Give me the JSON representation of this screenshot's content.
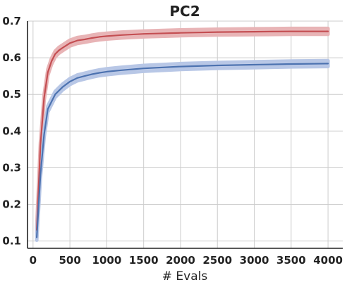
{
  "chart_data": {
    "type": "line",
    "title": "PC2",
    "xlabel": "# Evals",
    "ylabel": "",
    "xlim": [
      -75,
      4200
    ],
    "ylim": [
      0.08,
      0.7
    ],
    "xticks": [
      0,
      500,
      1000,
      1500,
      2000,
      2500,
      3000,
      3500,
      4000
    ],
    "yticks": [
      0.1,
      0.2,
      0.3,
      0.4,
      0.5,
      0.6,
      0.7
    ],
    "xtick_labels": [
      "0",
      "500",
      "1000",
      "1500",
      "2000",
      "2500",
      "3000",
      "3500",
      "4000"
    ],
    "ytick_labels": [
      "0.1",
      "0.2",
      "0.3",
      "0.4",
      "0.5",
      "0.6",
      "0.7"
    ],
    "grid": true,
    "legend": "none",
    "band_halfwidth": 0.008,
    "series": [
      {
        "color": "#c44e52",
        "band_color": "#e8b4b6",
        "x": [
          50,
          100,
          150,
          200,
          250,
          300,
          350,
          400,
          500,
          600,
          700,
          800,
          900,
          1000,
          1200,
          1500,
          2000,
          2500,
          3000,
          3500,
          4000
        ],
        "y": [
          0.13,
          0.36,
          0.49,
          0.56,
          0.59,
          0.61,
          0.62,
          0.627,
          0.64,
          0.647,
          0.65,
          0.654,
          0.657,
          0.659,
          0.662,
          0.665,
          0.668,
          0.67,
          0.671,
          0.672,
          0.672
        ]
      },
      {
        "color": "#4c72b0",
        "band_color": "#b8c7e6",
        "x": [
          50,
          100,
          150,
          200,
          250,
          300,
          350,
          400,
          500,
          600,
          700,
          800,
          900,
          1000,
          1200,
          1500,
          2000,
          2500,
          3000,
          3500,
          4000
        ],
        "y": [
          0.11,
          0.28,
          0.39,
          0.46,
          0.48,
          0.5,
          0.51,
          0.52,
          0.535,
          0.545,
          0.55,
          0.555,
          0.559,
          0.562,
          0.566,
          0.571,
          0.576,
          0.579,
          0.581,
          0.583,
          0.584
        ]
      }
    ]
  }
}
